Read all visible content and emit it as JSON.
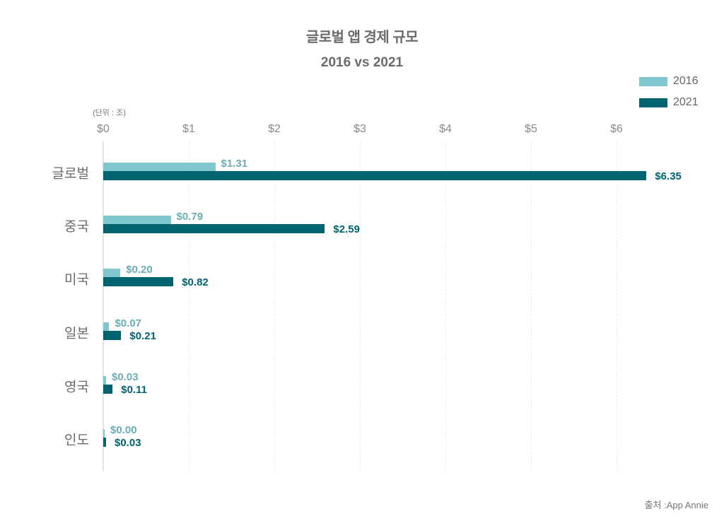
{
  "chart_data": {
    "type": "bar",
    "orientation": "horizontal",
    "title": "글로벌 앱 경제 규모",
    "subtitle": "2016 vs 2021",
    "unit_label": "(단위 : 조)",
    "xlabel": "",
    "ylabel": "",
    "xlim": [
      0,
      6.3
    ],
    "x_ticks": [
      "$0",
      "$1",
      "$2",
      "$3",
      "$4",
      "$5",
      "$6"
    ],
    "x_tick_values": [
      0,
      1,
      2,
      3,
      4,
      5,
      6
    ],
    "grid": true,
    "legend_position": "top-right",
    "categories": [
      "글로벌",
      "중국",
      "미국",
      "일본",
      "영국",
      "인도"
    ],
    "series": [
      {
        "name": "2016",
        "color": "#7ec8ce",
        "label_color": "#6aaeb3",
        "values": [
          1.31,
          0.79,
          0.2,
          0.07,
          0.03,
          0.0
        ],
        "labels": [
          "$1.31",
          "$0.79",
          "$0.20",
          "$0.07",
          "$0.03",
          "$0.00"
        ]
      },
      {
        "name": "2021",
        "color": "#006470",
        "label_color": "#006470",
        "values": [
          6.35,
          2.59,
          0.82,
          0.21,
          0.11,
          0.03
        ],
        "labels": [
          "$6.35",
          "$2.59",
          "$0.82",
          "$0.21",
          "$0.11",
          "$0.03"
        ]
      }
    ],
    "source": "출처 :App Annie"
  }
}
